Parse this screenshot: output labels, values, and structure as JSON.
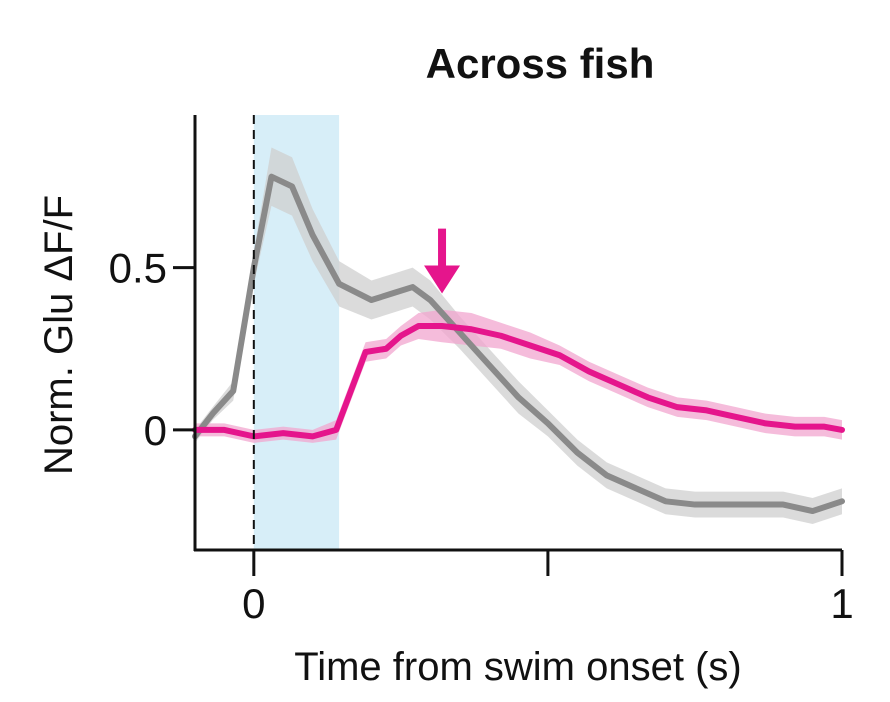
{
  "chart_data": {
    "type": "line",
    "title": "Across fish",
    "xlabel": "Time from swim onset (s)",
    "ylabel": "Norm. Glu ΔF/F",
    "xlim": [
      -0.1,
      1.0
    ],
    "ylim": [
      -0.37,
      0.97
    ],
    "x_ticks": [
      0,
      0.5,
      1
    ],
    "x_tick_labels": [
      "0",
      "",
      "1"
    ],
    "y_ticks": [
      0,
      0.5
    ],
    "y_tick_labels": [
      "0",
      "0.5"
    ],
    "grid": false,
    "annotations": [
      {
        "type": "vline",
        "x": 0,
        "style": "dashed",
        "color": "#111111"
      },
      {
        "type": "span",
        "x0": 0,
        "x1": 0.145,
        "color": "#d7eef8"
      },
      {
        "type": "arrow",
        "x": 0.32,
        "y_from": 0.62,
        "y_to": 0.42,
        "color": "#e5158c"
      }
    ],
    "series": [
      {
        "color": "#8a8a8a",
        "band_color": "#cfcfcf",
        "x": [
          -0.1,
          -0.07,
          -0.035,
          0.0,
          0.03,
          0.065,
          0.1,
          0.145,
          0.2,
          0.235,
          0.27,
          0.3,
          0.35,
          0.4,
          0.45,
          0.5,
          0.55,
          0.6,
          0.65,
          0.7,
          0.75,
          0.8,
          0.85,
          0.9,
          0.95,
          1.0
        ],
        "values": [
          -0.02,
          0.05,
          0.12,
          0.5,
          0.78,
          0.75,
          0.6,
          0.45,
          0.4,
          0.42,
          0.44,
          0.4,
          0.3,
          0.2,
          0.1,
          0.02,
          -0.07,
          -0.14,
          -0.18,
          -0.22,
          -0.23,
          -0.23,
          -0.23,
          -0.23,
          -0.25,
          -0.22
        ],
        "error": [
          0.02,
          0.02,
          0.03,
          0.05,
          0.09,
          0.09,
          0.08,
          0.07,
          0.06,
          0.06,
          0.06,
          0.06,
          0.05,
          0.05,
          0.05,
          0.04,
          0.04,
          0.04,
          0.04,
          0.04,
          0.04,
          0.04,
          0.04,
          0.04,
          0.04,
          0.04
        ]
      },
      {
        "color": "#e5158c",
        "band_color": "#f2a5cf",
        "x": [
          -0.1,
          -0.05,
          0.0,
          0.05,
          0.1,
          0.14,
          0.19,
          0.225,
          0.25,
          0.28,
          0.32,
          0.37,
          0.42,
          0.47,
          0.52,
          0.57,
          0.62,
          0.67,
          0.72,
          0.77,
          0.82,
          0.87,
          0.92,
          0.97,
          1.0
        ],
        "values": [
          0.0,
          0.0,
          -0.02,
          -0.01,
          -0.02,
          0.0,
          0.24,
          0.25,
          0.29,
          0.32,
          0.32,
          0.31,
          0.29,
          0.26,
          0.23,
          0.18,
          0.14,
          0.1,
          0.07,
          0.06,
          0.04,
          0.02,
          0.01,
          0.01,
          0.0
        ],
        "error": [
          0.02,
          0.02,
          0.02,
          0.02,
          0.02,
          0.03,
          0.03,
          0.03,
          0.03,
          0.04,
          0.05,
          0.05,
          0.04,
          0.04,
          0.03,
          0.03,
          0.03,
          0.03,
          0.03,
          0.03,
          0.03,
          0.03,
          0.03,
          0.03,
          0.03
        ]
      }
    ]
  }
}
